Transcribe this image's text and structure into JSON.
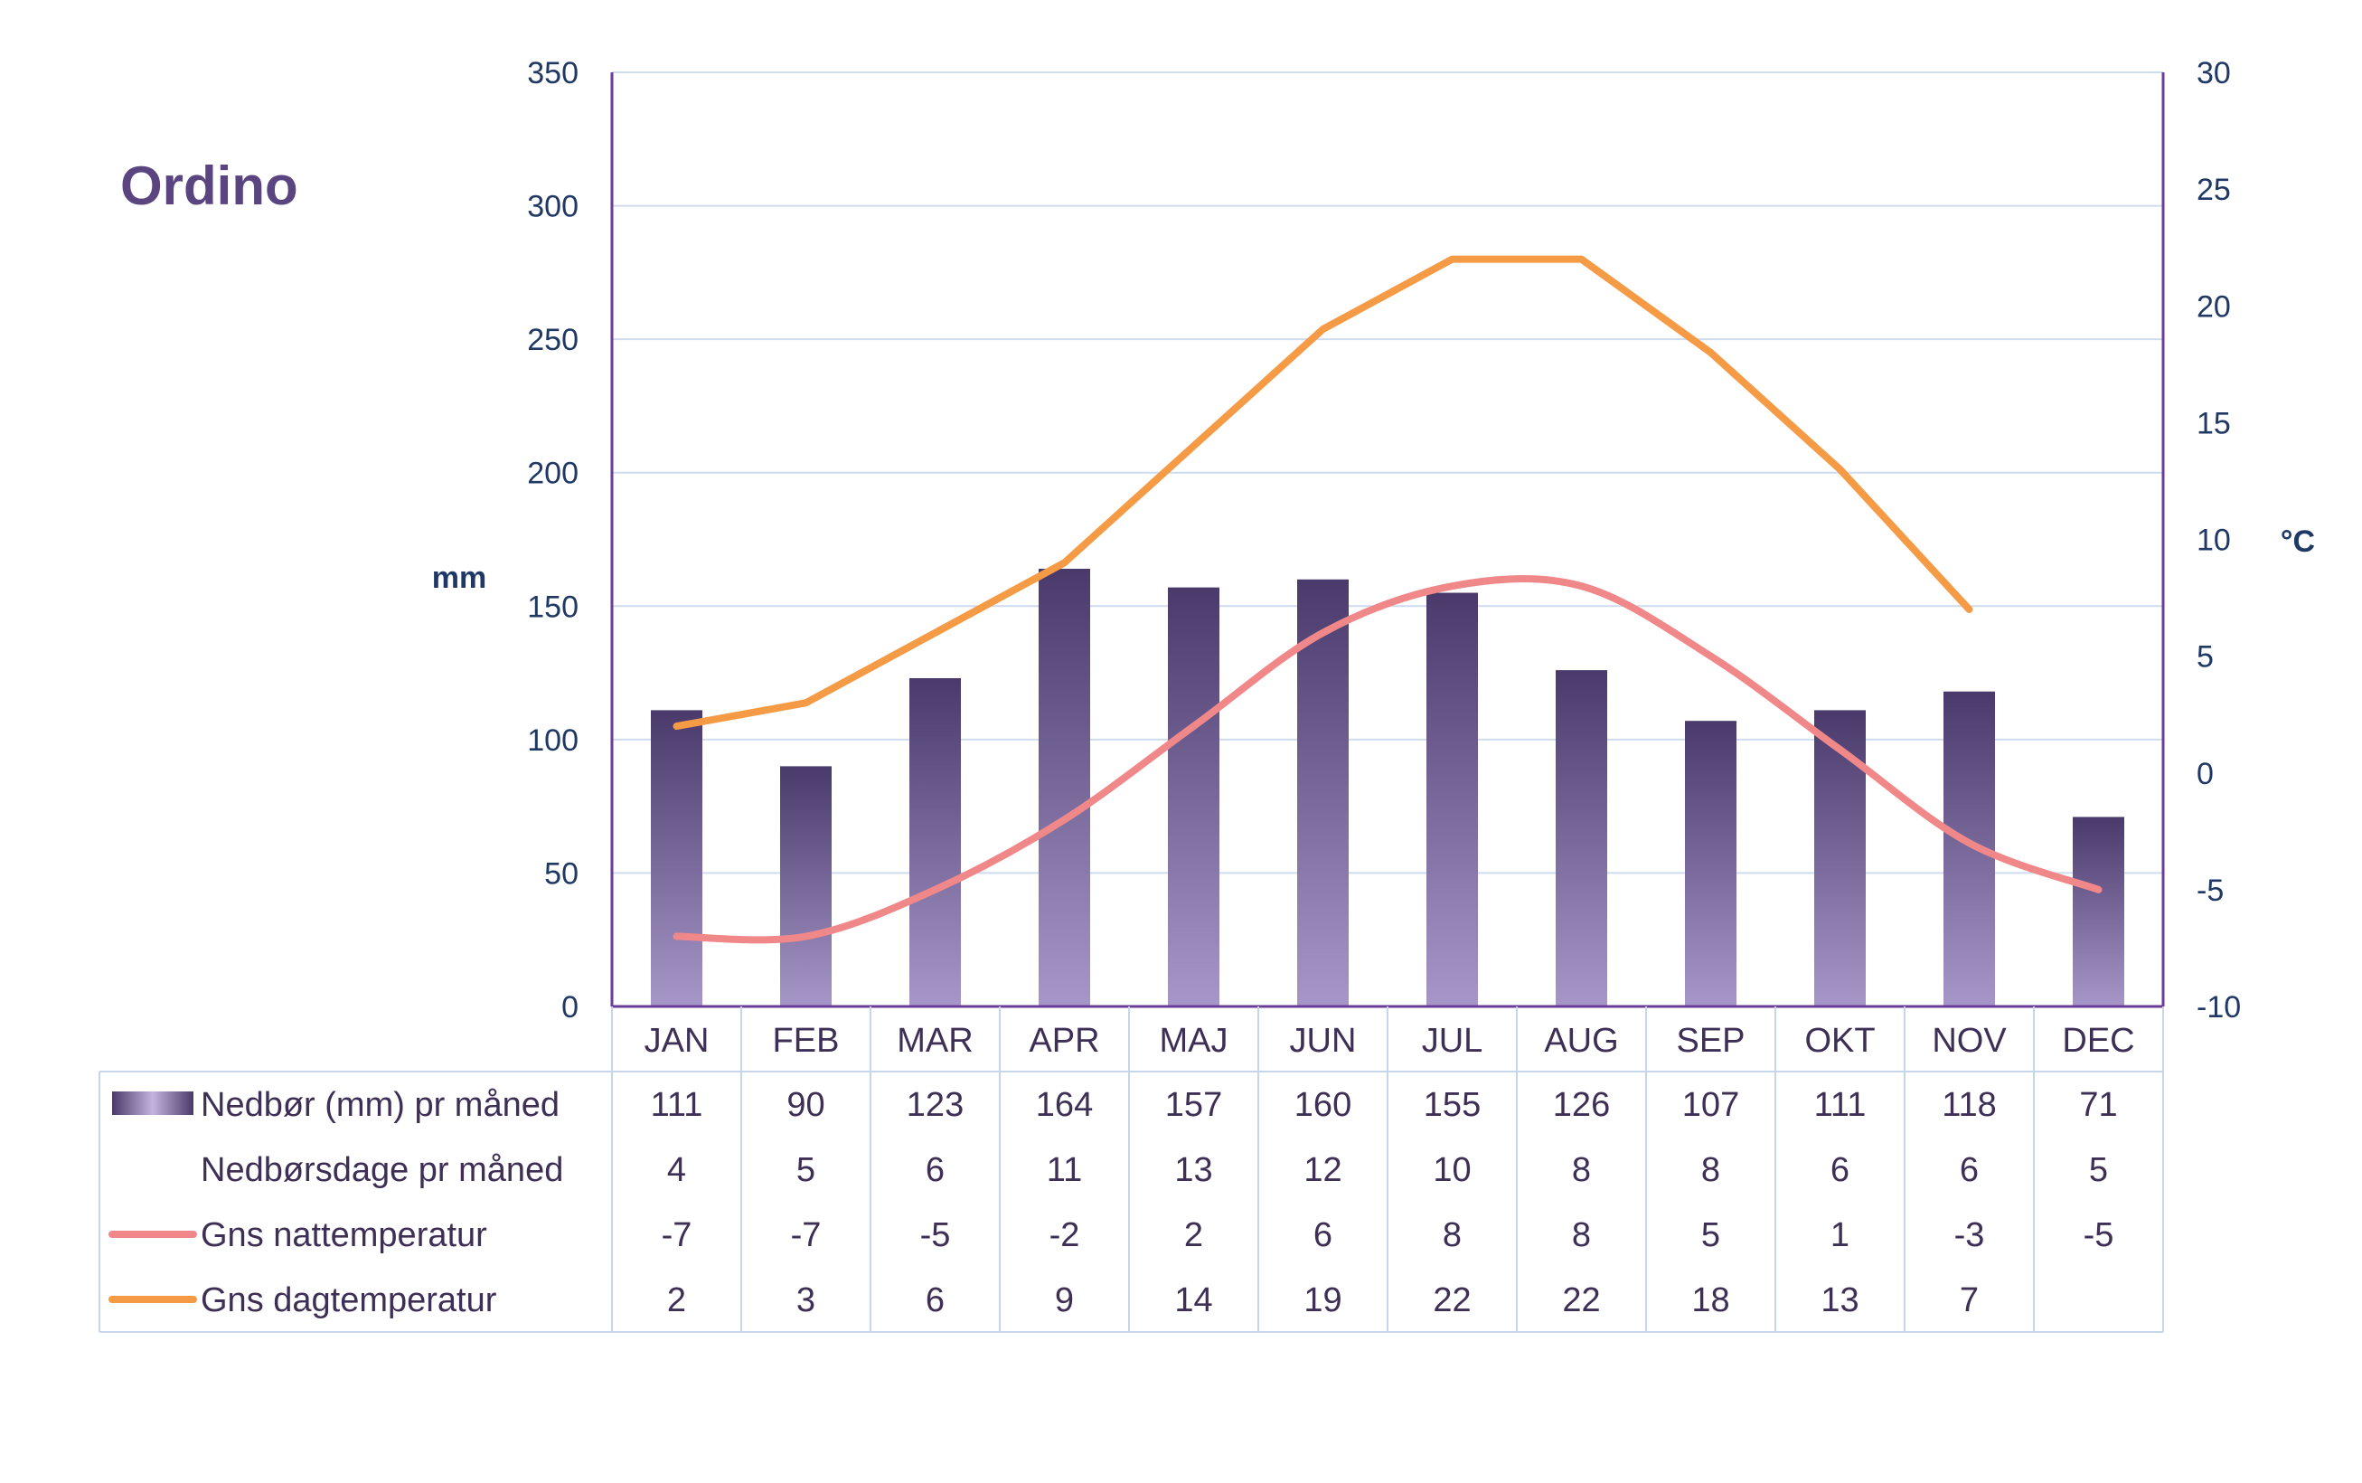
{
  "chart_data": {
    "type": "bar",
    "title": "Ordino",
    "categories": [
      "JAN",
      "FEB",
      "MAR",
      "APR",
      "MAJ",
      "JUN",
      "JUL",
      "AUG",
      "SEP",
      "OKT",
      "NOV",
      "DEC"
    ],
    "ylabel": "mm",
    "y2label": "°C",
    "ylim": [
      0,
      350
    ],
    "y2lim": [
      -10,
      30
    ],
    "yticks": [
      "0",
      "50",
      "100",
      "150",
      "200",
      "250",
      "300",
      "350"
    ],
    "y2ticks": [
      "-10",
      "-5",
      "0",
      "5",
      "10",
      "15",
      "20",
      "25",
      "30"
    ],
    "grid": true,
    "legend": "table-below",
    "series": [
      {
        "name": "Nedbør (mm) pr måned",
        "type": "bar",
        "axis": "left",
        "color": "#4a3a6b",
        "color_light": "#a796c8",
        "values": [
          111,
          90,
          123,
          164,
          157,
          160,
          155,
          126,
          107,
          111,
          118,
          71
        ]
      },
      {
        "name": "Nedbørsdage pr måned",
        "type": "table",
        "values": [
          4,
          5,
          6,
          11,
          13,
          12,
          10,
          8,
          8,
          6,
          6,
          5
        ]
      },
      {
        "name": "Gns nattemperatur",
        "type": "line",
        "axis": "right",
        "color": "#f0888a",
        "values": [
          -7,
          -7,
          -5,
          -2,
          2,
          6,
          8,
          8,
          5,
          1,
          -3,
          -5
        ]
      },
      {
        "name": "Gns dagtemperatur",
        "type": "line",
        "axis": "right",
        "color": "#f59a45",
        "values": [
          2,
          3,
          6,
          9,
          14,
          19,
          22,
          22,
          18,
          13,
          7,
          null
        ]
      }
    ],
    "colors": {
      "text": "#1f3864",
      "title": "#5b4580",
      "axis": "#6a3d9a",
      "grid": "#cfdcee",
      "table_border": "#c5d5ea",
      "table_text": "#3d2f55"
    }
  }
}
